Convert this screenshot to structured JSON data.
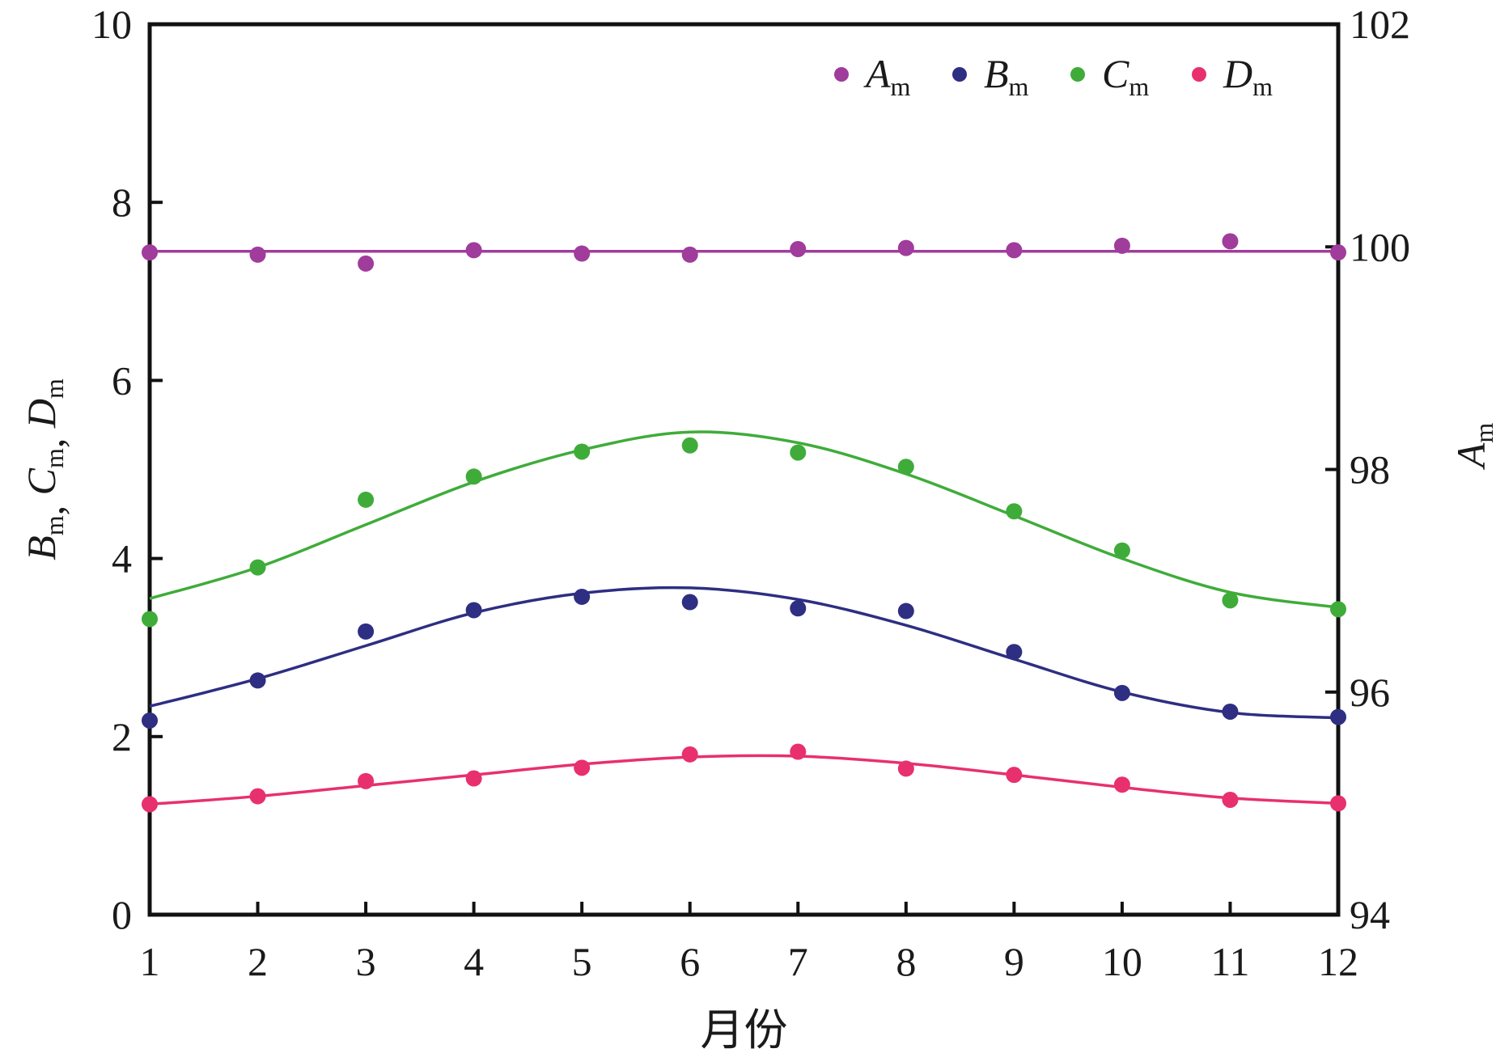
{
  "chart_data": {
    "type": "scatter",
    "xlabel": "月份",
    "ylabel_left": "B_m, C_m, D_m",
    "ylabel_right": "A_m",
    "x_ticks": [
      "1",
      "2",
      "3",
      "4",
      "5",
      "6",
      "7",
      "8",
      "9",
      "10",
      "11",
      "12"
    ],
    "y_left_ticks": [
      "0",
      "2",
      "4",
      "6",
      "8",
      "10"
    ],
    "y_right_ticks": [
      "94",
      "96",
      "98",
      "100",
      "102"
    ],
    "xlim": [
      1,
      12
    ],
    "ylim_left": [
      0,
      10
    ],
    "ylim_right": [
      94,
      102
    ],
    "grid": false,
    "legend_position": "top-right",
    "series": [
      {
        "name": "A_m",
        "label_main": "A",
        "label_sub": "m",
        "color": "#a03c9c",
        "axis": "right",
        "x": [
          1,
          2,
          3,
          4,
          5,
          6,
          7,
          8,
          9,
          10,
          11,
          12
        ],
        "points": [
          99.95,
          99.93,
          99.85,
          99.97,
          99.94,
          99.93,
          99.98,
          99.99,
          99.97,
          100.01,
          100.05,
          99.95
        ],
        "fit": [
          99.96,
          99.96,
          99.96,
          99.96,
          99.96,
          99.96,
          99.96,
          99.96,
          99.96,
          99.96,
          99.96,
          99.96
        ]
      },
      {
        "name": "B_m",
        "label_main": "B",
        "label_sub": "m",
        "color": "#2e2e82",
        "axis": "left",
        "x": [
          1,
          2,
          3,
          4,
          5,
          6,
          7,
          8,
          9,
          10,
          11,
          12
        ],
        "points": [
          2.18,
          2.63,
          3.18,
          3.42,
          3.57,
          3.51,
          3.44,
          3.41,
          2.95,
          2.49,
          2.28,
          2.22
        ],
        "fit": [
          2.34,
          2.65,
          3.02,
          3.39,
          3.61,
          3.67,
          3.54,
          3.25,
          2.87,
          2.5,
          2.27,
          2.21
        ]
      },
      {
        "name": "C_m",
        "label_main": "C",
        "label_sub": "m",
        "color": "#3fac3a",
        "axis": "left",
        "x": [
          1,
          2,
          3,
          4,
          5,
          6,
          7,
          8,
          9,
          10,
          11,
          12
        ],
        "points": [
          3.32,
          3.9,
          4.66,
          4.92,
          5.2,
          5.27,
          5.19,
          5.03,
          4.53,
          4.09,
          3.53,
          3.43
        ],
        "fit": [
          3.55,
          3.9,
          4.38,
          4.86,
          5.22,
          5.42,
          5.3,
          4.95,
          4.48,
          4.0,
          3.62,
          3.45
        ]
      },
      {
        "name": "D_m",
        "label_main": "D",
        "label_sub": "m",
        "color": "#e8306e",
        "axis": "left",
        "x": [
          1,
          2,
          3,
          4,
          5,
          6,
          7,
          8,
          9,
          10,
          11,
          12
        ],
        "points": [
          1.24,
          1.33,
          1.5,
          1.53,
          1.65,
          1.8,
          1.83,
          1.64,
          1.57,
          1.46,
          1.29,
          1.25
        ],
        "fit": [
          1.24,
          1.33,
          1.45,
          1.57,
          1.69,
          1.77,
          1.78,
          1.7,
          1.57,
          1.43,
          1.31,
          1.25
        ]
      }
    ]
  }
}
